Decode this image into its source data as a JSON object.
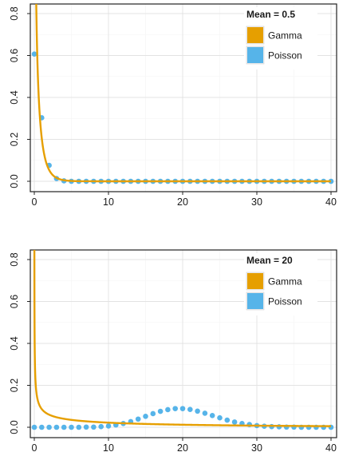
{
  "chart_data": [
    {
      "type": "line",
      "legend_title": "Mean = 0.5",
      "legend_position": "top-right",
      "grid": true,
      "xlim": [
        0,
        40
      ],
      "ylim": [
        0,
        0.8
      ],
      "x_ticks": [
        0,
        10,
        20,
        30,
        40
      ],
      "y_ticks": [
        0.0,
        0.2,
        0.4,
        0.6,
        0.8
      ],
      "x_tick_labels": [
        "0",
        "10",
        "20",
        "30",
        "40"
      ],
      "y_tick_labels": [
        "0.0",
        "0.2",
        "0.4",
        "0.6",
        "0.8"
      ],
      "series": [
        {
          "name": "Gamma",
          "kind": "line",
          "color": "#E69F00",
          "shape": 0.5,
          "mean": 0.5
        },
        {
          "name": "Poisson",
          "kind": "points",
          "color": "#56B4E9",
          "x": [
            0,
            1,
            2,
            3,
            4,
            5,
            6,
            7,
            8,
            9,
            10,
            11,
            12,
            13,
            14,
            15,
            16,
            17,
            18,
            19,
            20,
            21,
            22,
            23,
            24,
            25,
            26,
            27,
            28,
            29,
            30,
            31,
            32,
            33,
            34,
            35,
            36,
            37,
            38,
            39,
            40
          ],
          "y": [
            0.607,
            0.303,
            0.076,
            0.013,
            0.002,
            0,
            0,
            0,
            0,
            0,
            0,
            0,
            0,
            0,
            0,
            0,
            0,
            0,
            0,
            0,
            0,
            0,
            0,
            0,
            0,
            0,
            0,
            0,
            0,
            0,
            0,
            0,
            0,
            0,
            0,
            0,
            0,
            0,
            0,
            0,
            0
          ]
        }
      ]
    },
    {
      "type": "line",
      "legend_title": "Mean = 20",
      "legend_position": "top-right",
      "grid": true,
      "xlim": [
        0,
        40
      ],
      "ylim": [
        0,
        0.8
      ],
      "x_ticks": [
        0,
        10,
        20,
        30,
        40
      ],
      "y_ticks": [
        0.0,
        0.2,
        0.4,
        0.6,
        0.8
      ],
      "x_tick_labels": [
        "0",
        "10",
        "20",
        "30",
        "40"
      ],
      "y_tick_labels": [
        "0.0",
        "0.2",
        "0.4",
        "0.6",
        "0.8"
      ],
      "series": [
        {
          "name": "Gamma",
          "kind": "line",
          "color": "#E69F00",
          "shape": 0.5,
          "mean": 20
        },
        {
          "name": "Poisson",
          "kind": "points",
          "color": "#56B4E9",
          "x": [
            0,
            1,
            2,
            3,
            4,
            5,
            6,
            7,
            8,
            9,
            10,
            11,
            12,
            13,
            14,
            15,
            16,
            17,
            18,
            19,
            20,
            21,
            22,
            23,
            24,
            25,
            26,
            27,
            28,
            29,
            30,
            31,
            32,
            33,
            34,
            35,
            36,
            37,
            38,
            39,
            40
          ],
          "y": [
            0,
            0,
            0,
            0,
            0,
            0,
            0,
            0.001,
            0.001,
            0.003,
            0.006,
            0.011,
            0.018,
            0.027,
            0.039,
            0.052,
            0.065,
            0.076,
            0.084,
            0.089,
            0.089,
            0.085,
            0.077,
            0.067,
            0.056,
            0.045,
            0.034,
            0.025,
            0.018,
            0.013,
            0.008,
            0.005,
            0.003,
            0.002,
            0.001,
            0.001,
            0,
            0,
            0,
            0,
            0
          ]
        }
      ]
    }
  ]
}
